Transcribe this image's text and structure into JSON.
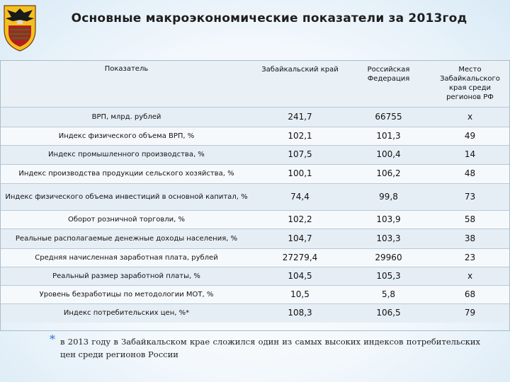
{
  "header": {
    "title": "Основные макроэкономические показатели за 2013год"
  },
  "table": {
    "columns": [
      "Показатель",
      "Забайкальский край",
      "Российская Федерация",
      "Место Забайкальского края среди регионов РФ"
    ],
    "rows": [
      {
        "indicator": "ВРП, млрд. рублей",
        "region": "241,7",
        "rf": "66755",
        "rank": "х"
      },
      {
        "indicator": "Индекс физического объема ВРП, %",
        "region": "102,1",
        "rf": "101,3",
        "rank": "49"
      },
      {
        "indicator": "Индекс промышленного производства, %",
        "region": "107,5",
        "rf": "100,4",
        "rank": "14"
      },
      {
        "indicator": "Индекс производства продукции сельского хозяйства, %",
        "region": "100,1",
        "rf": "106,2",
        "rank": "48"
      },
      {
        "indicator": "Индекс физического объема инвестиций в основной капитал, %",
        "region": "74,4",
        "rf": "99,8",
        "rank": "73"
      },
      {
        "indicator": "Оборот розничной торговли, %",
        "region": "102,2",
        "rf": "103,9",
        "rank": "58"
      },
      {
        "indicator": "Реальные располагаемые денежные доходы населения, %",
        "region": "104,7",
        "rf": "103,3",
        "rank": "38"
      },
      {
        "indicator": "Средняя начисленная заработная плата, рублей",
        "region": "27279,4",
        "rf": "29960",
        "rank": "23"
      },
      {
        "indicator": "Реальный размер заработной платы, %",
        "region": "104,5",
        "rf": "105,3",
        "rank": "х"
      },
      {
        "indicator": "Уровень безработицы по методологии МОТ, %",
        "region": "10,5",
        "rf": "5,8",
        "rank": "68"
      },
      {
        "indicator": "Индекс потребительских цен, %*",
        "region": "108,3",
        "rf": "106,5",
        "rank": "79"
      }
    ]
  },
  "footnote": {
    "marker": "*",
    "text": "в 2013 году в Забайкальском крае сложился один из самых высоких индексов потребительских цен среди регионов России"
  },
  "colors": {
    "row_odd": "#e6eef5",
    "row_even": "#f6f9fc",
    "star": "#2a76c8"
  },
  "icons": {
    "emblem": "regional-coat-of-arms"
  }
}
